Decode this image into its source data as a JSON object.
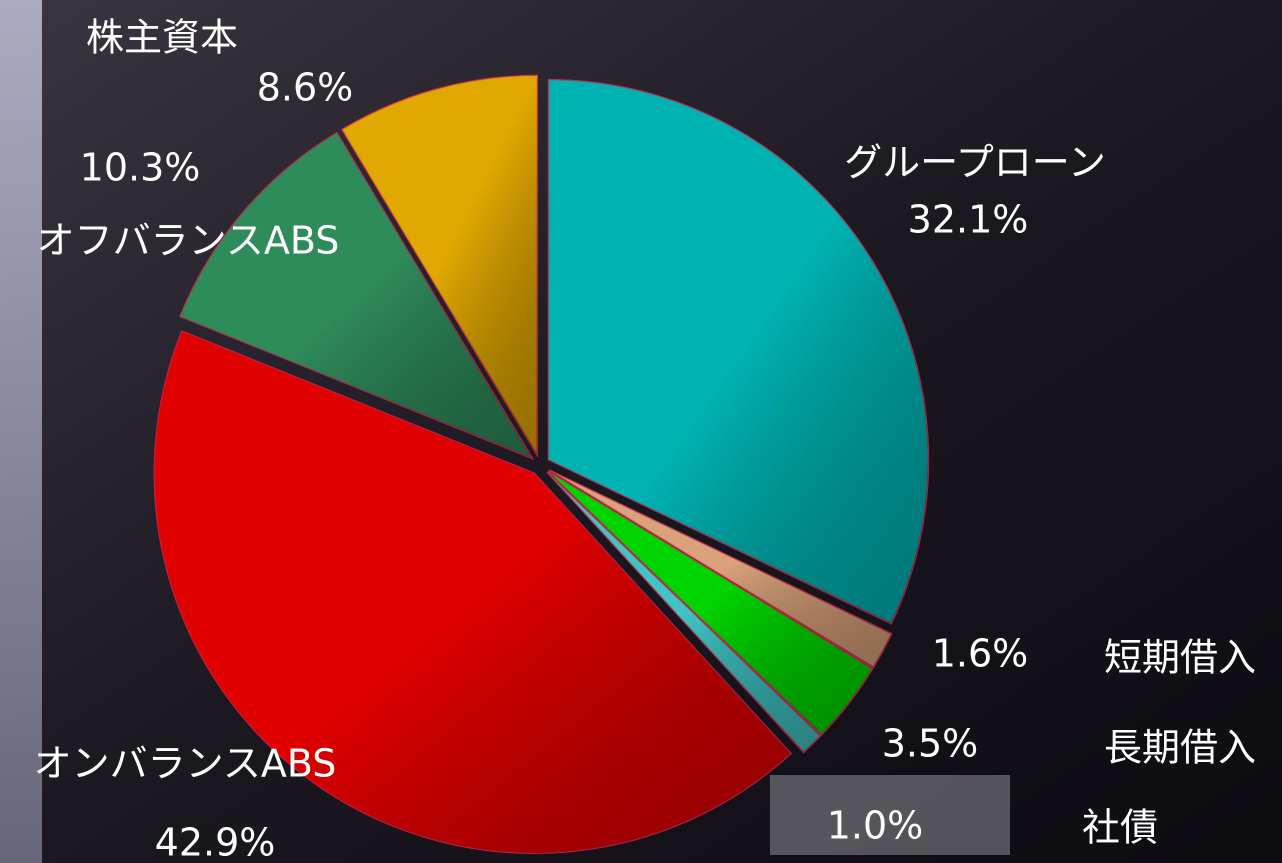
{
  "chart_data": {
    "type": "pie",
    "categories": [
      "グループローン",
      "短期借入",
      "長期借入",
      "社債",
      "オンバランスABS",
      "オフバランスABS",
      "株主資本"
    ],
    "values": [
      32.1,
      1.6,
      3.5,
      1.0,
      42.9,
      10.3,
      8.6
    ],
    "value_labels": [
      "32.1%",
      "1.6%",
      "3.5%",
      "1.0%",
      "42.9%",
      "10.3%",
      "8.6%"
    ],
    "colors": [
      "#00b3b3",
      "#d9a27a",
      "#00d400",
      "#40c4c4",
      "#e00000",
      "#2e8b5a",
      "#e0a800"
    ]
  }
}
